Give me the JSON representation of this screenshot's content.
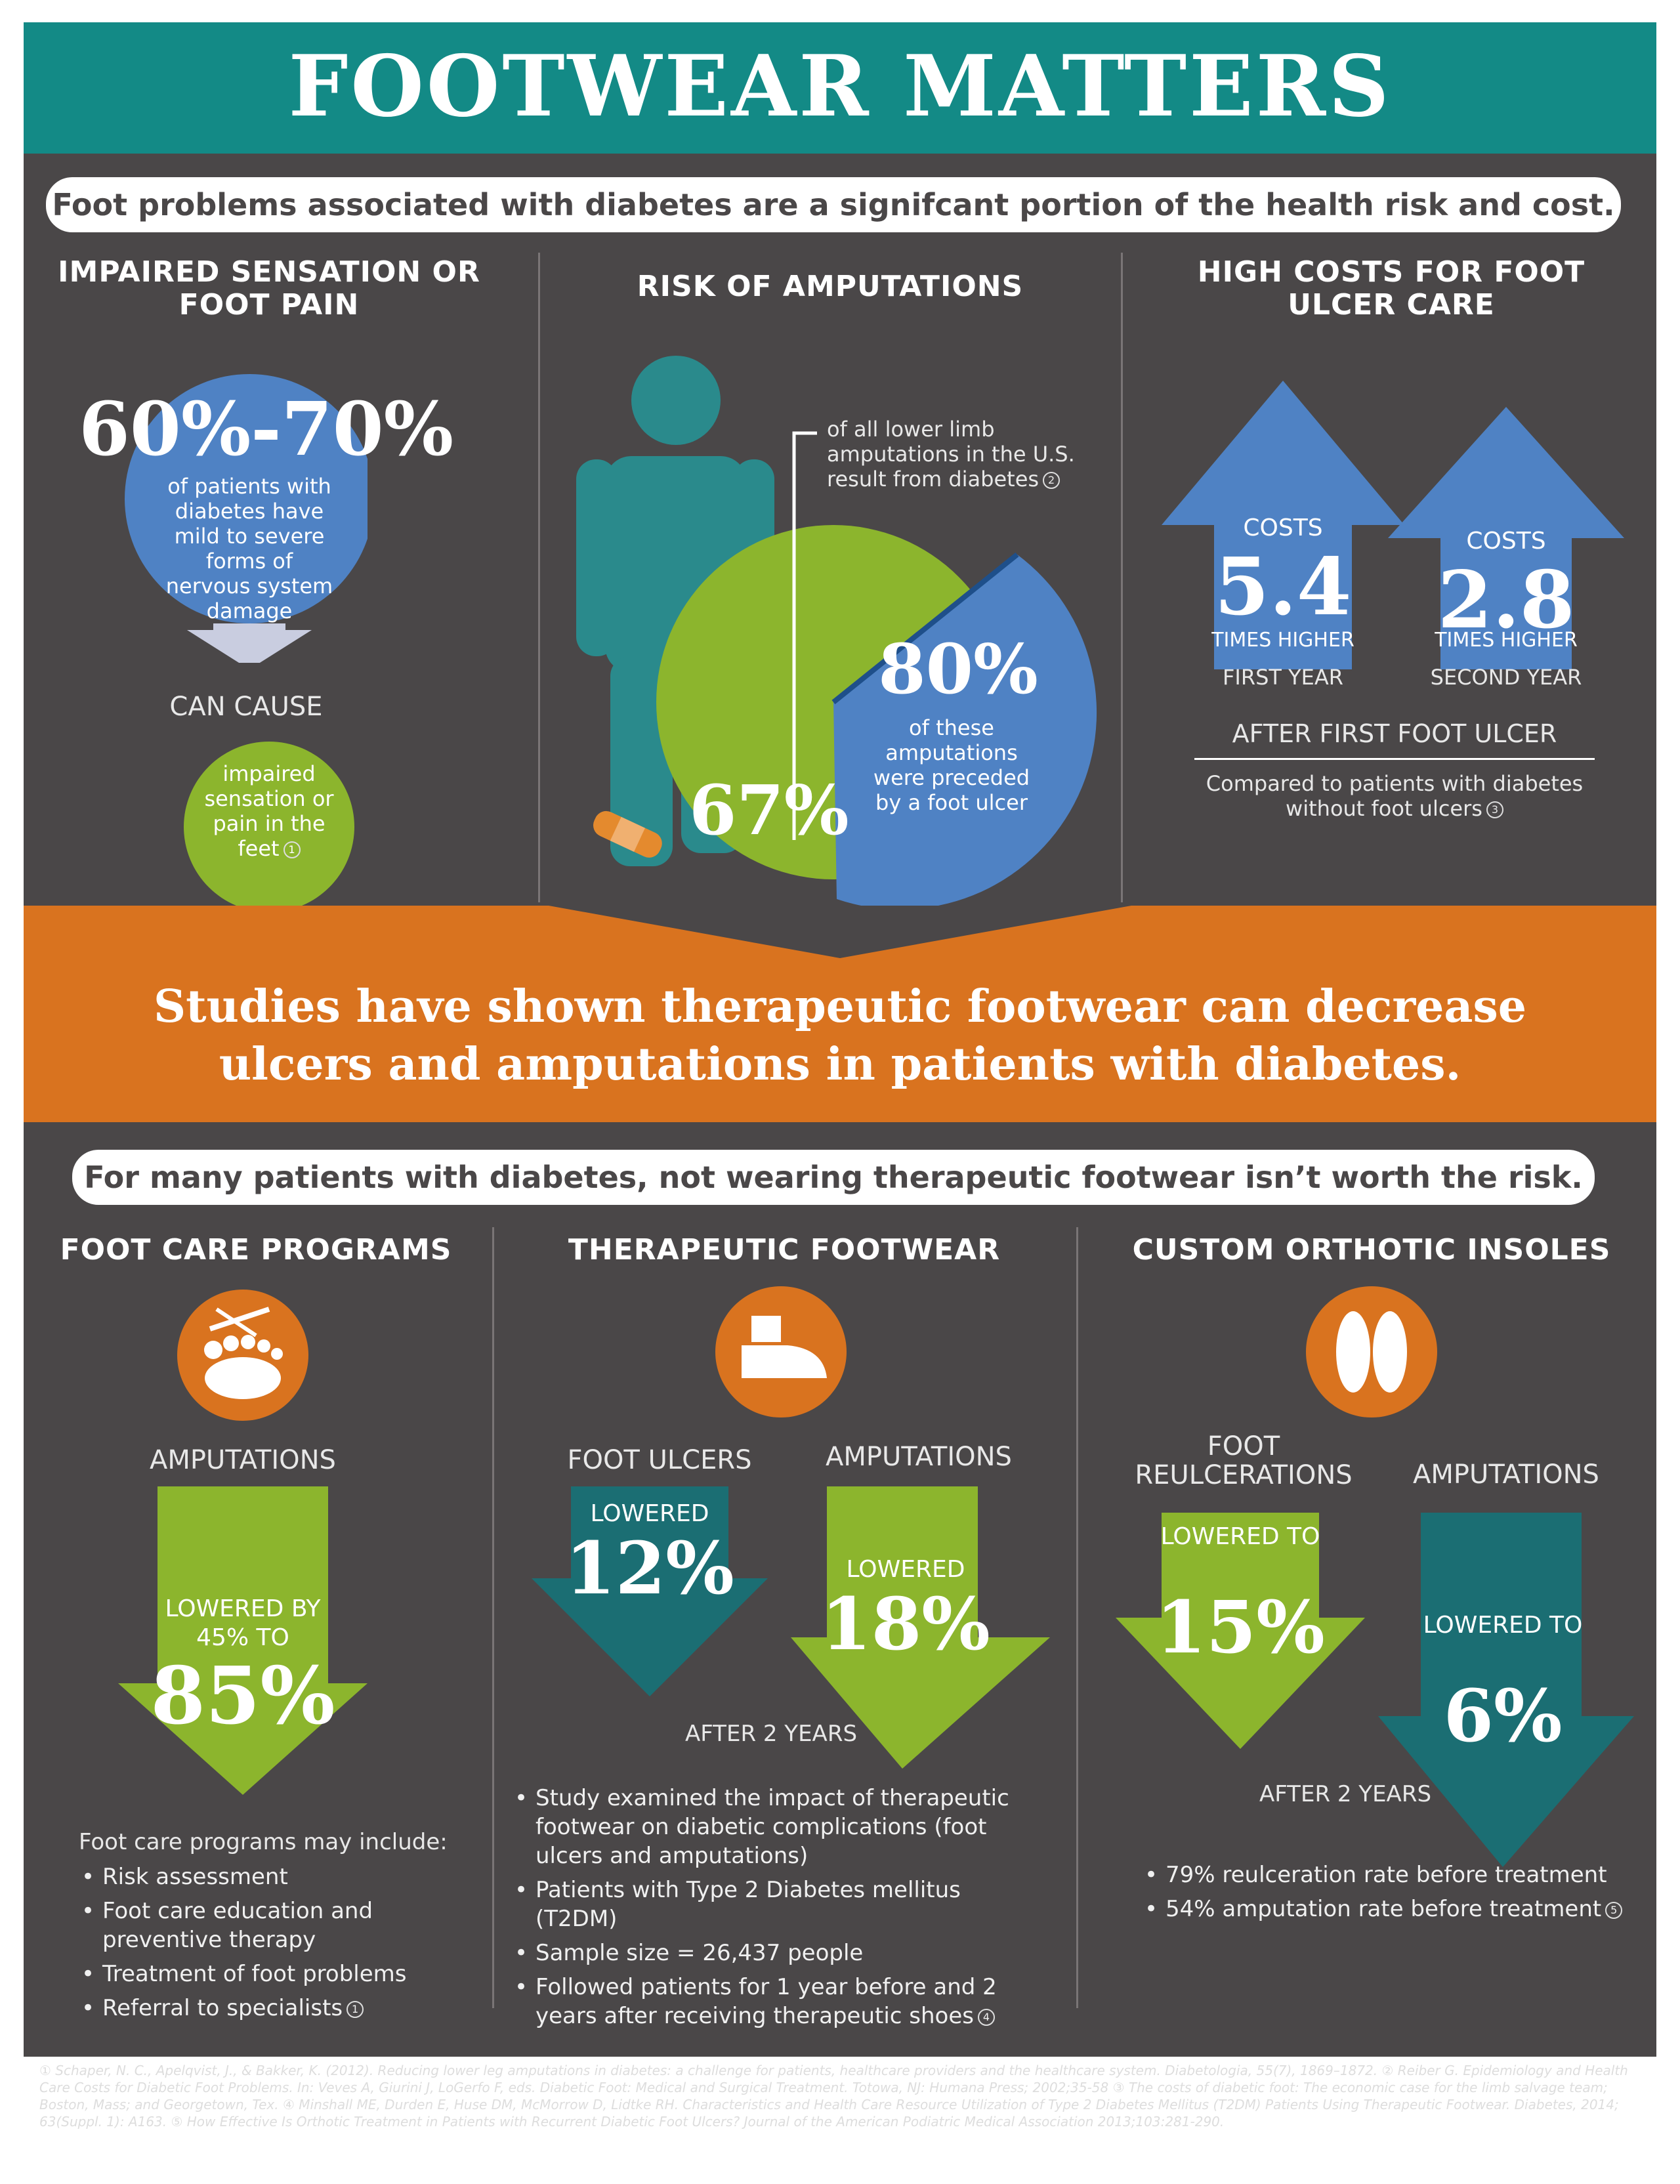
{
  "header": {
    "title": "FOOTWEAR MATTERS"
  },
  "intro_banner": "Foot problems associated with diabetes are a signifcant portion of the health risk and cost.",
  "sensation": {
    "heading": "IMPAIRED SENSATION OR FOOT PAIN",
    "stat": "60%-70%",
    "stat_text": "of patients with diabetes have mild to severe forms of nervous system damage",
    "can_cause": "CAN CAUSE",
    "result_text": "impaired sensation or pain in the feet",
    "cite": "1"
  },
  "amputation": {
    "heading": "RISK OF AMPUTATIONS",
    "callout": "of all lower limb amputations in the U.S. result from diabetes",
    "callout_cite": "2",
    "pct_diabetes": "67%",
    "pct_ulcer": "80%",
    "pct_ulcer_text": "of these amputations were preceded by a foot ulcer"
  },
  "costs": {
    "heading": "HIGH COSTS FOR FOOT ULCER CARE",
    "first": {
      "label": "COSTS",
      "value": "5.4",
      "suffix": "TIMES HIGHER",
      "period": "FIRST YEAR"
    },
    "second": {
      "label": "COSTS",
      "value": "2.8",
      "suffix": "TIMES HIGHER",
      "period": "SECOND YEAR"
    },
    "after": "AFTER FIRST FOOT ULCER",
    "note": "Compared to patients with diabetes without foot ulcers",
    "cite": "3"
  },
  "studies_banner": "Studies have shown therapeutic footwear can decrease ulcers and amputations in patients with diabetes.",
  "risk_banner": "For many patients with diabetes, not wearing therapeutic footwear isn’t worth the risk.",
  "foot_care": {
    "heading": "FOOT CARE PROGRAMS",
    "label": "AMPUTATIONS",
    "arrow_text": "LOWERED BY 45% TO",
    "arrow_value": "85%",
    "list_title": "Foot care programs may include:",
    "items": [
      "Risk assessment",
      "Foot care education and preventive therapy",
      "Treatment of foot problems",
      "Referral to specialists"
    ],
    "cite": "1"
  },
  "footwear": {
    "heading": "THERAPEUTIC FOOTWEAR",
    "ulcers_label": "FOOT ULCERS",
    "ulcers_text": "LOWERED",
    "ulcers_value": "12%",
    "amp_label": "AMPUTATIONS",
    "amp_text": "LOWERED",
    "amp_value": "18%",
    "period": "AFTER 2 YEARS",
    "items": [
      "Study examined the impact of therapeutic footwear on diabetic complications (foot ulcers and amputations)",
      "Patients with Type 2 Diabetes mellitus (T2DM)",
      "Sample size = 26,437 people",
      "Followed patients for 1 year before and 2 years after receiving therapeutic shoes"
    ],
    "cite": "4"
  },
  "insoles": {
    "heading": "CUSTOM ORTHOTIC INSOLES",
    "reulc_label": "FOOT REULCERATIONS",
    "reulc_text": "LOWERED TO",
    "reulc_value": "15%",
    "amp_label": "AMPUTATIONS",
    "amp_text": "LOWERED TO",
    "amp_value": "6%",
    "period": "AFTER 2 YEARS",
    "items": [
      "79% reulceration rate before treatment",
      "54% amputation rate before treatment"
    ],
    "cite": "5"
  },
  "references": "① Schaper, N. C., Apelqvist, J., & Bakker, K. (2012). Reducing lower leg amputations in diabetes: a challenge for patients, healthcare providers and the healthcare system. Diabetologia, 55(7), 1869–1872. ② Reiber G. Epidemiology and Health Care Costs for Diabetic Foot Problems. In: Veves A, Giurini J, LoGerfo F, eds. Diabetic Foot: Medical and Surgical Treatment. Totowa, NJ: Humana Press; 2002;35-58 ③ The costs of diabetic foot: The economic case for the limb salvage team; Boston, Mass; and Georgetown, Tex. ④ Minshall ME, Durden E, Huse DM, McMorrow D, Lidtke RH. Characteristics and Health Care Resource Utilization of Type 2 Diabetes Mellitus (T2DM) Patients Using Therapeutic Footwear. Diabetes, 2014; 63(Suppl. 1): A163. ⑤ How Effective Is Orthotic Treatment in Patients with Recurrent Diabetic Foot Ulcers? Journal of the American Podiatric Medical Association 2013;103:281-290.",
  "colors": {
    "teal": "#138a86",
    "panel": "#4a4748",
    "orange": "#d9731f",
    "green": "#8cb52d",
    "blue": "#4f82c4",
    "dark_teal": "#1b6e73"
  }
}
